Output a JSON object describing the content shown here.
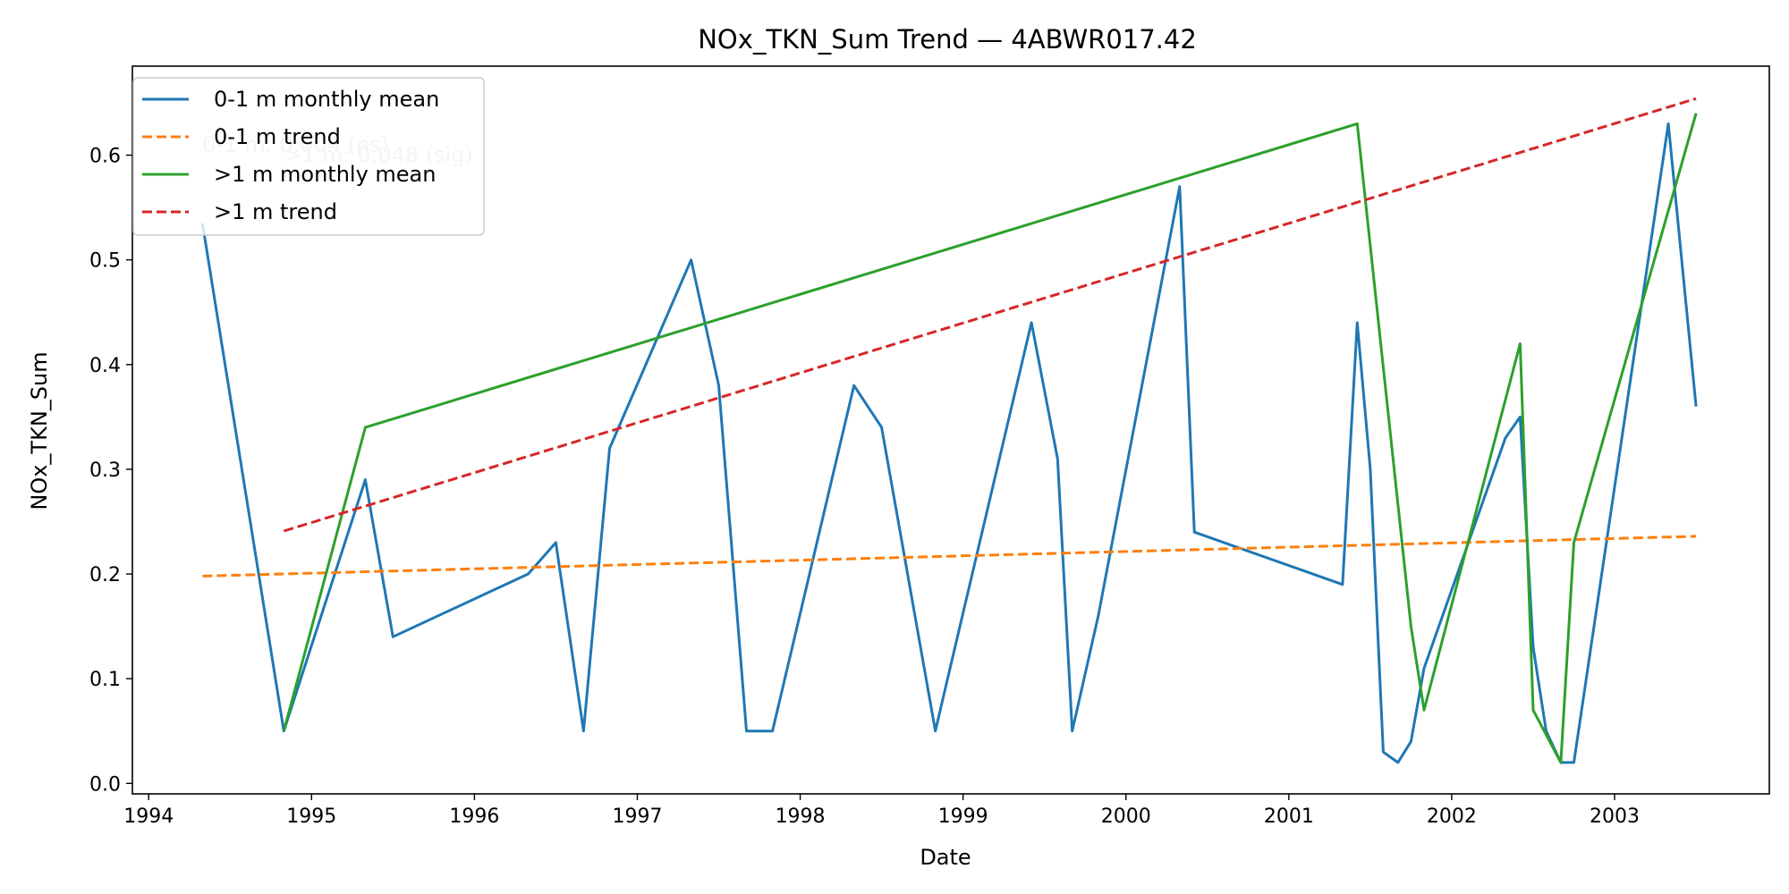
{
  "chart_data": {
    "type": "line",
    "title": "NOx_TKN_Sum Trend — 4ABWR017.42",
    "xlabel": "Date",
    "ylabel": "NOx_TKN_Sum",
    "xlim": [
      1993.9,
      2003.95
    ],
    "ylim": [
      -0.01,
      0.685
    ],
    "x_ticks": [
      {
        "value": 1994,
        "label": "1994"
      },
      {
        "value": 1995,
        "label": "1995"
      },
      {
        "value": 1996,
        "label": "1996"
      },
      {
        "value": 1997,
        "label": "1997"
      },
      {
        "value": 1998,
        "label": "1998"
      },
      {
        "value": 1999,
        "label": "1999"
      },
      {
        "value": 2000,
        "label": "2000"
      },
      {
        "value": 2001,
        "label": "2001"
      },
      {
        "value": 2002,
        "label": "2002"
      },
      {
        "value": 2003,
        "label": "2003"
      }
    ],
    "y_ticks": [
      {
        "value": 0.0,
        "label": "0.0"
      },
      {
        "value": 0.1,
        "label": "0.1"
      },
      {
        "value": 0.2,
        "label": "0.2"
      },
      {
        "value": 0.3,
        "label": "0.3"
      },
      {
        "value": 0.4,
        "label": "0.4"
      },
      {
        "value": 0.5,
        "label": "0.5"
      },
      {
        "value": 0.6,
        "label": "0.6"
      }
    ],
    "grid": false,
    "legend_position": "top-left",
    "series": [
      {
        "name": "0-1 m monthly mean",
        "color": "#1f77b4",
        "style": "solid",
        "points": [
          [
            1994.33,
            0.535
          ],
          [
            1994.83,
            0.05
          ],
          [
            1995.33,
            0.29
          ],
          [
            1995.5,
            0.14
          ],
          [
            1996.33,
            0.2
          ],
          [
            1996.5,
            0.23
          ],
          [
            1996.67,
            0.05
          ],
          [
            1996.83,
            0.32
          ],
          [
            1997.33,
            0.5
          ],
          [
            1997.5,
            0.38
          ],
          [
            1997.67,
            0.05
          ],
          [
            1997.83,
            0.05
          ],
          [
            1998.33,
            0.38
          ],
          [
            1998.5,
            0.34
          ],
          [
            1998.83,
            0.05
          ],
          [
            1998.92,
            0.11
          ],
          [
            1999.42,
            0.44
          ],
          [
            1999.58,
            0.31
          ],
          [
            1999.67,
            0.05
          ],
          [
            1999.83,
            0.16
          ],
          [
            2000.33,
            0.57
          ],
          [
            2000.42,
            0.24
          ],
          [
            2001.33,
            0.19
          ],
          [
            2001.42,
            0.44
          ],
          [
            2001.5,
            0.3
          ],
          [
            2001.58,
            0.03
          ],
          [
            2001.67,
            0.02
          ],
          [
            2001.75,
            0.04
          ],
          [
            2001.83,
            0.11
          ],
          [
            2002.33,
            0.33
          ],
          [
            2002.42,
            0.35
          ],
          [
            2002.5,
            0.13
          ],
          [
            2002.58,
            0.05
          ],
          [
            2002.67,
            0.02
          ],
          [
            2002.75,
            0.02
          ],
          [
            2003.33,
            0.63
          ],
          [
            2003.5,
            0.36
          ]
        ]
      },
      {
        "name": "0-1 m trend",
        "color": "#ff7f0e",
        "style": "dashed",
        "points": [
          [
            1994.33,
            0.198
          ],
          [
            2003.5,
            0.236
          ]
        ]
      },
      {
        "name": ">1 m monthly mean",
        "color": "#2ca02c",
        "style": "solid",
        "points": [
          [
            1994.83,
            0.05
          ],
          [
            1995.33,
            0.34
          ],
          [
            2001.42,
            0.63
          ],
          [
            2001.75,
            0.15
          ],
          [
            2001.83,
            0.07
          ],
          [
            2002.42,
            0.42
          ],
          [
            2002.5,
            0.07
          ],
          [
            2002.67,
            0.02
          ],
          [
            2002.75,
            0.23
          ],
          [
            2003.5,
            0.64
          ]
        ]
      },
      {
        "name": ">1 m trend",
        "color": "#d62728",
        "style": "dashed",
        "points": [
          [
            1994.83,
            0.241
          ],
          [
            2003.5,
            0.654
          ]
        ]
      }
    ],
    "annotations": [
      {
        "text": "0-1 m: 0.004 (ns)",
        "x": 1994.33,
        "y": 0.61
      },
      {
        "text": ">1 m: 0.048 (sig)",
        "x": 1994.83,
        "y": 0.6
      }
    ]
  }
}
